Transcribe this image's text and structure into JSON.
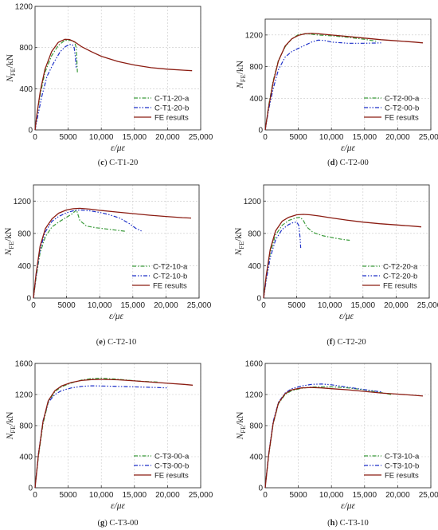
{
  "colors": {
    "green": "#3a9a3a",
    "blue": "#1c2fc8",
    "red": "#8b1c12",
    "grid": "#c8c8c8",
    "axis": "#333333"
  },
  "chart_data": [
    {
      "type": "line",
      "panel_letter": "c",
      "panel_name": "C-T1-20",
      "xlabel": "ε/με",
      "ylabel_main": "N",
      "ylabel_sub": "FE",
      "ylabel_unit": "/kN",
      "xlim": [
        0,
        25000
      ],
      "ylim": [
        0,
        1200
      ],
      "xticks": [
        0,
        5000,
        10000,
        15000,
        20000,
        25000
      ],
      "xtick_labels": [
        "0",
        "5000",
        "10,000",
        "15,000",
        "20,000",
        "25,000"
      ],
      "yticks": [
        0,
        400,
        800,
        1200
      ],
      "ytick_labels": [
        "0",
        "400",
        "800",
        "1200"
      ],
      "legend_placement": "bottom-right",
      "grid": true,
      "series": [
        {
          "name": "C-T1-20-a",
          "style": "dashdot",
          "color_key": "green",
          "x": [
            0,
            300,
            800,
            1500,
            2500,
            3500,
            4500,
            5500,
            6000,
            6200,
            6300,
            6350,
            6400
          ],
          "y": [
            0,
            150,
            350,
            560,
            720,
            820,
            870,
            870,
            850,
            800,
            700,
            620,
            560
          ]
        },
        {
          "name": "C-T1-20-b",
          "style": "dashdotdot",
          "color_key": "blue",
          "x": [
            0,
            400,
            1000,
            1800,
            2800,
            3800,
            4600,
            5200,
            5600,
            5900,
            6100,
            6200
          ],
          "y": [
            0,
            130,
            320,
            520,
            650,
            760,
            810,
            830,
            830,
            800,
            700,
            600
          ]
        },
        {
          "name": "FE results",
          "style": "solid",
          "color_key": "red",
          "x": [
            0,
            300,
            800,
            1500,
            2500,
            3500,
            4500,
            5200,
            6000,
            7000,
            8500,
            10000,
            12500,
            15000,
            17500,
            20000,
            22500,
            23700
          ],
          "y": [
            0,
            160,
            380,
            590,
            760,
            850,
            880,
            878,
            855,
            810,
            760,
            715,
            665,
            630,
            605,
            590,
            580,
            575
          ]
        }
      ]
    },
    {
      "type": "line",
      "panel_letter": "d",
      "panel_name": "C-T2-00",
      "xlabel": "ε/με",
      "ylabel_main": "N",
      "ylabel_sub": "FE",
      "ylabel_unit": "/kN",
      "xlim": [
        0,
        25000
      ],
      "ylim": [
        0,
        1400
      ],
      "xticks": [
        0,
        5000,
        10000,
        15000,
        20000,
        25000
      ],
      "xtick_labels": [
        "0",
        "5000",
        "10,000",
        "15,000",
        "20,000",
        "25,000"
      ],
      "yticks": [
        0,
        400,
        800,
        1200
      ],
      "ytick_labels": [
        "0",
        "400",
        "800",
        "1200"
      ],
      "legend_placement": "bottom-right",
      "grid": true,
      "series": [
        {
          "name": "C-T2-00-a",
          "style": "dashdot",
          "color_key": "green",
          "x": [
            0,
            500,
            1200,
            2000,
            3000,
            4000,
            5000,
            6000,
            7000,
            8000,
            10000,
            12500,
            15000,
            16800
          ],
          "y": [
            0,
            300,
            620,
            880,
            1050,
            1150,
            1205,
            1215,
            1210,
            1200,
            1190,
            1170,
            1145,
            1120
          ]
        },
        {
          "name": "C-T2-00-b",
          "style": "dashdotdot",
          "color_key": "blue",
          "x": [
            0,
            500,
            1200,
            2000,
            3000,
            4000,
            5000,
            6000,
            7000,
            8000,
            9000,
            10000,
            12500,
            15000,
            17500
          ],
          "y": [
            0,
            250,
            520,
            760,
            920,
            990,
            1030,
            1070,
            1110,
            1135,
            1130,
            1110,
            1095,
            1095,
            1100
          ]
        },
        {
          "name": "FE results",
          "style": "solid",
          "color_key": "red",
          "x": [
            0,
            500,
            1200,
            2000,
            3000,
            4000,
            5000,
            6000,
            7000,
            8000,
            10000,
            12500,
            15000,
            17500,
            20000,
            22500,
            23800
          ],
          "y": [
            0,
            280,
            600,
            870,
            1060,
            1150,
            1195,
            1215,
            1220,
            1215,
            1200,
            1180,
            1160,
            1140,
            1125,
            1110,
            1100
          ]
        }
      ]
    },
    {
      "type": "line",
      "panel_letter": "e",
      "panel_name": "C-T2-10",
      "xlabel": "ε/με",
      "ylabel_main": "N",
      "ylabel_sub": "FE",
      "ylabel_unit": "/kN",
      "xlim": [
        0,
        25000
      ],
      "ylim": [
        0,
        1400
      ],
      "xticks": [
        0,
        5000,
        10000,
        15000,
        20000,
        25000
      ],
      "xtick_labels": [
        "0",
        "5000",
        "10,000",
        "15,000",
        "20,000",
        "25,000"
      ],
      "yticks": [
        0,
        400,
        800,
        1200
      ],
      "ytick_labels": [
        "0",
        "400",
        "800",
        "1200"
      ],
      "legend_placement": "bottom-right",
      "grid": true,
      "series": [
        {
          "name": "C-T2-10-a",
          "style": "dashdot",
          "color_key": "green",
          "x": [
            0,
            400,
            1000,
            1800,
            2800,
            3800,
            4800,
            5800,
            6500,
            7000,
            8000,
            9500,
            11000,
            12500,
            14000
          ],
          "y": [
            0,
            250,
            560,
            760,
            880,
            940,
            990,
            1040,
            1090,
            960,
            890,
            870,
            855,
            840,
            825
          ]
        },
        {
          "name": "C-T2-10-b",
          "style": "dashdotdot",
          "color_key": "blue",
          "x": [
            0,
            400,
            1000,
            1800,
            2800,
            3800,
            5000,
            6000,
            7000,
            8500,
            10000,
            11500,
            13000,
            14500,
            15500,
            16300
          ],
          "y": [
            0,
            270,
            600,
            820,
            950,
            1010,
            1055,
            1080,
            1090,
            1080,
            1060,
            1030,
            990,
            920,
            860,
            830
          ]
        },
        {
          "name": "FE results",
          "style": "solid",
          "color_key": "red",
          "x": [
            0,
            400,
            1000,
            1800,
            2800,
            3800,
            5000,
            6000,
            7000,
            8500,
            10000,
            12500,
            15000,
            17500,
            20000,
            22500,
            23800
          ],
          "y": [
            0,
            300,
            640,
            860,
            980,
            1050,
            1090,
            1105,
            1110,
            1100,
            1085,
            1065,
            1045,
            1025,
            1010,
            995,
            990
          ]
        }
      ]
    },
    {
      "type": "line",
      "panel_letter": "f",
      "panel_name": "C-T2-20",
      "xlabel": "ε/με",
      "ylabel_main": "N",
      "ylabel_sub": "FE",
      "ylabel_unit": "/kN",
      "xlim": [
        0,
        25000
      ],
      "ylim": [
        0,
        1400
      ],
      "xticks": [
        0,
        5000,
        10000,
        15000,
        20000,
        25000
      ],
      "xtick_labels": [
        "0",
        "5000",
        "10,000",
        "15,000",
        "20,000",
        "25,000"
      ],
      "yticks": [
        0,
        400,
        800,
        1200
      ],
      "ytick_labels": [
        "0",
        "400",
        "800",
        "1200"
      ],
      "legend_placement": "bottom-right",
      "grid": true,
      "series": [
        {
          "name": "C-T2-20-a",
          "style": "dashdot",
          "color_key": "green",
          "x": [
            0,
            400,
            1000,
            1800,
            2800,
            3800,
            4800,
            5500,
            6000,
            6500,
            7500,
            9000,
            10500,
            12000,
            13000
          ],
          "y": [
            0,
            250,
            560,
            780,
            900,
            960,
            990,
            1000,
            960,
            880,
            810,
            770,
            745,
            725,
            715
          ]
        },
        {
          "name": "C-T2-20-b",
          "style": "dashdotdot",
          "color_key": "blue",
          "x": [
            0,
            400,
            1000,
            1800,
            2800,
            3800,
            4500,
            5000,
            5300,
            5500,
            5600
          ],
          "y": [
            0,
            220,
            500,
            720,
            850,
            910,
            935,
            940,
            900,
            750,
            620
          ]
        },
        {
          "name": "FE results",
          "style": "solid",
          "color_key": "red",
          "x": [
            0,
            400,
            1000,
            1800,
            2800,
            3800,
            5000,
            6000,
            7000,
            8500,
            10000,
            12500,
            15000,
            17500,
            20000,
            22500,
            23800
          ],
          "y": [
            0,
            280,
            600,
            830,
            950,
            1000,
            1030,
            1035,
            1030,
            1015,
            995,
            965,
            940,
            920,
            905,
            890,
            880
          ]
        }
      ]
    },
    {
      "type": "line",
      "panel_letter": "g",
      "panel_name": "C-T3-00",
      "xlabel": "ε/με",
      "ylabel_main": "N",
      "ylabel_sub": "FE",
      "ylabel_unit": "/kN",
      "xlim": [
        0,
        25000
      ],
      "ylim": [
        0,
        1600
      ],
      "xticks": [
        0,
        5000,
        10000,
        15000,
        20000,
        25000
      ],
      "xtick_labels": [
        "0",
        "5000",
        "10,000",
        "15,000",
        "20,000",
        "25,000"
      ],
      "yticks": [
        0,
        400,
        800,
        1200,
        1600
      ],
      "ytick_labels": [
        "0",
        "400",
        "800",
        "1200",
        "1600"
      ],
      "legend_placement": "bottom-right",
      "grid": true,
      "series": [
        {
          "name": "C-T3-00-a",
          "style": "dashdot",
          "color_key": "green",
          "x": [
            0,
            500,
            1200,
            2000,
            3000,
            4000,
            5500,
            7000,
            8500,
            10000,
            12000,
            14000,
            16000,
            18500
          ],
          "y": [
            0,
            400,
            820,
            1100,
            1240,
            1300,
            1350,
            1385,
            1405,
            1410,
            1400,
            1385,
            1370,
            1360
          ]
        },
        {
          "name": "C-T3-00-b",
          "style": "dashdotdot",
          "color_key": "blue",
          "x": [
            0,
            500,
            1200,
            2000,
            3000,
            4000,
            5500,
            7000,
            8500,
            10000,
            12500,
            15000,
            17500,
            20000
          ],
          "y": [
            0,
            430,
            860,
            1100,
            1200,
            1250,
            1285,
            1305,
            1312,
            1310,
            1305,
            1298,
            1292,
            1285
          ]
        },
        {
          "name": "FE results",
          "style": "solid",
          "color_key": "red",
          "x": [
            0,
            500,
            1200,
            2000,
            3000,
            4000,
            5500,
            7000,
            8500,
            10000,
            12500,
            15000,
            17500,
            20000,
            22500,
            23800
          ],
          "y": [
            0,
            420,
            850,
            1120,
            1250,
            1310,
            1355,
            1380,
            1392,
            1395,
            1390,
            1375,
            1360,
            1345,
            1330,
            1320
          ]
        }
      ]
    },
    {
      "type": "line",
      "panel_letter": "h",
      "panel_name": "C-T3-10",
      "xlabel": "ε/με",
      "ylabel_main": "N",
      "ylabel_sub": "FE",
      "ylabel_unit": "/kN",
      "xlim": [
        0,
        25000
      ],
      "ylim": [
        0,
        1600
      ],
      "xticks": [
        0,
        5000,
        10000,
        15000,
        20000,
        25000
      ],
      "xtick_labels": [
        "0",
        "5000",
        "10,000",
        "15,000",
        "20,000",
        "25,000"
      ],
      "yticks": [
        0,
        400,
        800,
        1200,
        1600
      ],
      "ytick_labels": [
        "0",
        "400",
        "800",
        "1200",
        "1600"
      ],
      "legend_placement": "bottom-right",
      "grid": true,
      "series": [
        {
          "name": "C-T3-10-a",
          "style": "dashdot",
          "color_key": "green",
          "x": [
            0,
            500,
            1200,
            2000,
            3000,
            4000,
            5500,
            7000,
            8500,
            10000,
            12500,
            15000,
            17500,
            19000
          ],
          "y": [
            0,
            400,
            820,
            1080,
            1200,
            1250,
            1280,
            1295,
            1300,
            1298,
            1285,
            1260,
            1225,
            1200
          ]
        },
        {
          "name": "C-T3-10-b",
          "style": "dashdotdot",
          "color_key": "blue",
          "x": [
            0,
            500,
            1200,
            2000,
            3000,
            4000,
            5500,
            7000,
            8500,
            10000,
            12000,
            14000,
            16000,
            17500
          ],
          "y": [
            0,
            420,
            850,
            1100,
            1220,
            1275,
            1310,
            1330,
            1335,
            1325,
            1300,
            1275,
            1250,
            1235
          ]
        },
        {
          "name": "FE results",
          "style": "solid",
          "color_key": "red",
          "x": [
            0,
            500,
            1200,
            2000,
            3000,
            4000,
            5500,
            7000,
            8500,
            10000,
            12500,
            15000,
            17500,
            20000,
            22500,
            23800
          ],
          "y": [
            0,
            410,
            830,
            1090,
            1210,
            1260,
            1285,
            1290,
            1285,
            1275,
            1260,
            1240,
            1220,
            1205,
            1190,
            1180
          ]
        }
      ]
    }
  ]
}
